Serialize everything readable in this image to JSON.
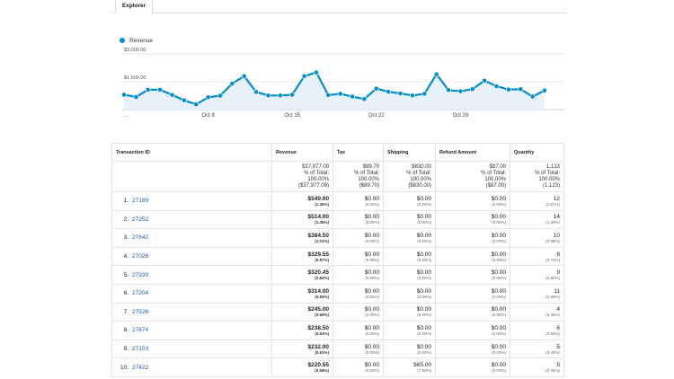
{
  "tab": {
    "label": "Explorer"
  },
  "legend": {
    "label": "Revenue",
    "color": "#058dc7"
  },
  "chart_data": {
    "type": "area",
    "y_tick_labels": [
      "$3,000.00",
      "$1,500.00"
    ],
    "y_ticks": [
      3000,
      1500
    ],
    "ylim": [
      0,
      3000
    ],
    "x_tick_labels": [
      "...",
      "Oct 8",
      "Oct 15",
      "Oct 22",
      "Oct 29"
    ],
    "x_tick_index": [
      0,
      7,
      14,
      21,
      28
    ],
    "series": [
      {
        "name": "Revenue",
        "color": "#058dc7",
        "values": [
          800,
          680,
          1070,
          1070,
          790,
          500,
          280,
          660,
          750,
          1400,
          1800,
          950,
          760,
          760,
          800,
          1800,
          2000,
          780,
          850,
          700,
          570,
          1130,
          960,
          870,
          760,
          850,
          1900,
          1050,
          990,
          1100,
          1560,
          1260,
          1080,
          1100,
          700,
          1030
        ]
      }
    ]
  },
  "table": {
    "headers": [
      "Transaction ID",
      "Revenue",
      "Tax",
      "Shipping",
      "Refund Amount",
      "Quantity"
    ],
    "totals": [
      {
        "value": "$37,977.09",
        "pct": "% of Total:",
        "pct_value": "100.00%",
        "base": "($37,977.09)"
      },
      {
        "value": "$89.70",
        "pct": "% of Total:",
        "pct_value": "100.00%",
        "base": "($89.70)"
      },
      {
        "value": "$830.00",
        "pct": "% of Total:",
        "pct_value": "100.00%",
        "base": "($830.00)"
      },
      {
        "value": "$87.00",
        "pct": "% of Total:",
        "pct_value": "100.00%",
        "base": "($87.00)"
      },
      {
        "value": "1,123",
        "pct": "% of Total:",
        "pct_value": "100.00%",
        "base": "(1,123)"
      }
    ],
    "rows": [
      {
        "rank": "1.",
        "id": "27189",
        "revenue": "$549.00",
        "revenue_pct": "(1.45%)",
        "tax": "$0.00",
        "tax_pct": "(0.00%)",
        "shipping": "$0.00",
        "shipping_pct": "(0.00%)",
        "refund": "$0.00",
        "refund_pct": "(0.00%)",
        "qty": "12",
        "qty_pct": "(1.07%)"
      },
      {
        "rank": "2.",
        "id": "27252",
        "revenue": "$514.00",
        "revenue_pct": "(1.35%)",
        "tax": "$0.00",
        "tax_pct": "(0.00%)",
        "shipping": "$0.00",
        "shipping_pct": "(0.00%)",
        "refund": "$0.00",
        "refund_pct": "(0.00%)",
        "qty": "14",
        "qty_pct": "(1.25%)"
      },
      {
        "rank": "3.",
        "id": "27642",
        "revenue": "$384.50",
        "revenue_pct": "(1.01%)",
        "tax": "$0.00",
        "tax_pct": "(0.00%)",
        "shipping": "$0.00",
        "shipping_pct": "(0.00%)",
        "refund": "$0.00",
        "refund_pct": "(0.00%)",
        "qty": "10",
        "qty_pct": "(0.89%)"
      },
      {
        "rank": "4.",
        "id": "27026",
        "revenue": "$329.55",
        "revenue_pct": "(0.87%)",
        "tax": "$0.00",
        "tax_pct": "(0.00%)",
        "shipping": "$0.00",
        "shipping_pct": "(0.00%)",
        "refund": "$0.00",
        "refund_pct": "(0.00%)",
        "qty": "8",
        "qty_pct": "(0.71%)"
      },
      {
        "rank": "5.",
        "id": "27339",
        "revenue": "$320.45",
        "revenue_pct": "(0.84%)",
        "tax": "$0.00",
        "tax_pct": "(0.00%)",
        "shipping": "$0.00",
        "shipping_pct": "(0.00%)",
        "refund": "$0.00",
        "refund_pct": "(0.00%)",
        "qty": "9",
        "qty_pct": "(0.80%)"
      },
      {
        "rank": "6.",
        "id": "27204",
        "revenue": "$314.00",
        "revenue_pct": "(0.83%)",
        "tax": "$0.00",
        "tax_pct": "(0.00%)",
        "shipping": "$0.00",
        "shipping_pct": "(0.00%)",
        "refund": "$0.00",
        "refund_pct": "(0.00%)",
        "qty": "11",
        "qty_pct": "(0.98%)"
      },
      {
        "rank": "7.",
        "id": "27526",
        "revenue": "$245.00",
        "revenue_pct": "(0.65%)",
        "tax": "$0.00",
        "tax_pct": "(0.00%)",
        "shipping": "$0.00",
        "shipping_pct": "(0.00%)",
        "refund": "$0.00",
        "refund_pct": "(0.00%)",
        "qty": "4",
        "qty_pct": "(0.36%)"
      },
      {
        "rank": "8.",
        "id": "27674",
        "revenue": "$238.50",
        "revenue_pct": "(0.63%)",
        "tax": "$0.00",
        "tax_pct": "(0.00%)",
        "shipping": "$0.00",
        "shipping_pct": "(0.00%)",
        "refund": "$0.00",
        "refund_pct": "(0.00%)",
        "qty": "6",
        "qty_pct": "(0.53%)"
      },
      {
        "rank": "9.",
        "id": "27103",
        "revenue": "$232.00",
        "revenue_pct": "(0.61%)",
        "tax": "$0.00",
        "tax_pct": "(0.00%)",
        "shipping": "$0.00",
        "shipping_pct": "(0.00%)",
        "refund": "$0.00",
        "refund_pct": "(0.00%)",
        "qty": "5",
        "qty_pct": "(0.45%)"
      },
      {
        "rank": "10.",
        "id": "27422",
        "revenue": "$220.55",
        "revenue_pct": "(0.58%)",
        "tax": "$0.00",
        "tax_pct": "(0.00%)",
        "shipping": "$65.00",
        "shipping_pct": "(7.83%)",
        "refund": "$0.00",
        "refund_pct": "(0.00%)",
        "qty": "5",
        "qty_pct": "(0.45%)"
      }
    ]
  }
}
